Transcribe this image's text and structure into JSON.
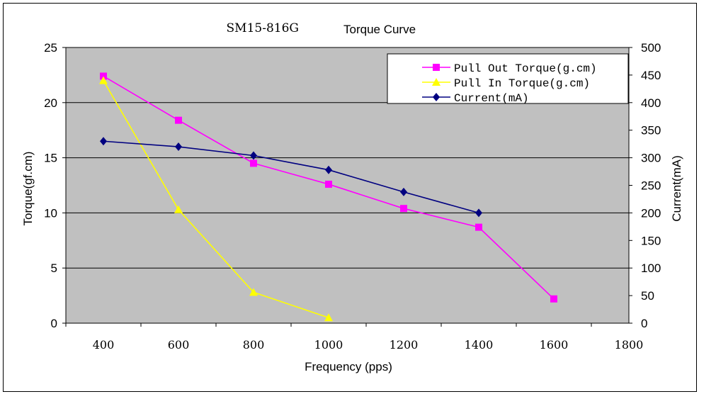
{
  "chart_data": {
    "type": "line",
    "title_model": "SM15-816G",
    "title_text": "Torque Curve",
    "xlabel": "Frequency (pps)",
    "ylabel_left": "Torque(gf.cm)",
    "ylabel_right": "Current(mA)",
    "x_ticks": [
      400,
      600,
      800,
      1000,
      1200,
      1400,
      1600,
      1800
    ],
    "x_range": [
      300,
      1800
    ],
    "y_left_range": [
      0,
      25
    ],
    "y_left_ticks": [
      0,
      5,
      10,
      15,
      20,
      25
    ],
    "y_right_range": [
      0,
      500
    ],
    "y_right_ticks": [
      0,
      50,
      100,
      150,
      200,
      250,
      300,
      350,
      400,
      450,
      500
    ],
    "grid": true,
    "legend_position": "top-right",
    "plot_background": "#c0c0c0",
    "series": [
      {
        "name": "Pull Out Torque(g.cm)",
        "axis": "left",
        "color": "#ff00ff",
        "marker": "square",
        "x": [
          400,
          600,
          800,
          1000,
          1200,
          1400,
          1600
        ],
        "values": [
          22.4,
          18.4,
          14.5,
          12.6,
          10.4,
          8.7,
          2.2
        ]
      },
      {
        "name": "Pull In Torque(g.cm)",
        "axis": "left",
        "color": "#ffff00",
        "marker": "triangle",
        "x": [
          400,
          600,
          800,
          1000
        ],
        "values": [
          22.0,
          10.3,
          2.8,
          0.5
        ]
      },
      {
        "name": "Current(mA)",
        "axis": "right",
        "color": "#000080",
        "marker": "diamond",
        "x": [
          400,
          600,
          800,
          1000,
          1200,
          1400
        ],
        "values": [
          330,
          320,
          304,
          278,
          238,
          200
        ]
      }
    ]
  }
}
